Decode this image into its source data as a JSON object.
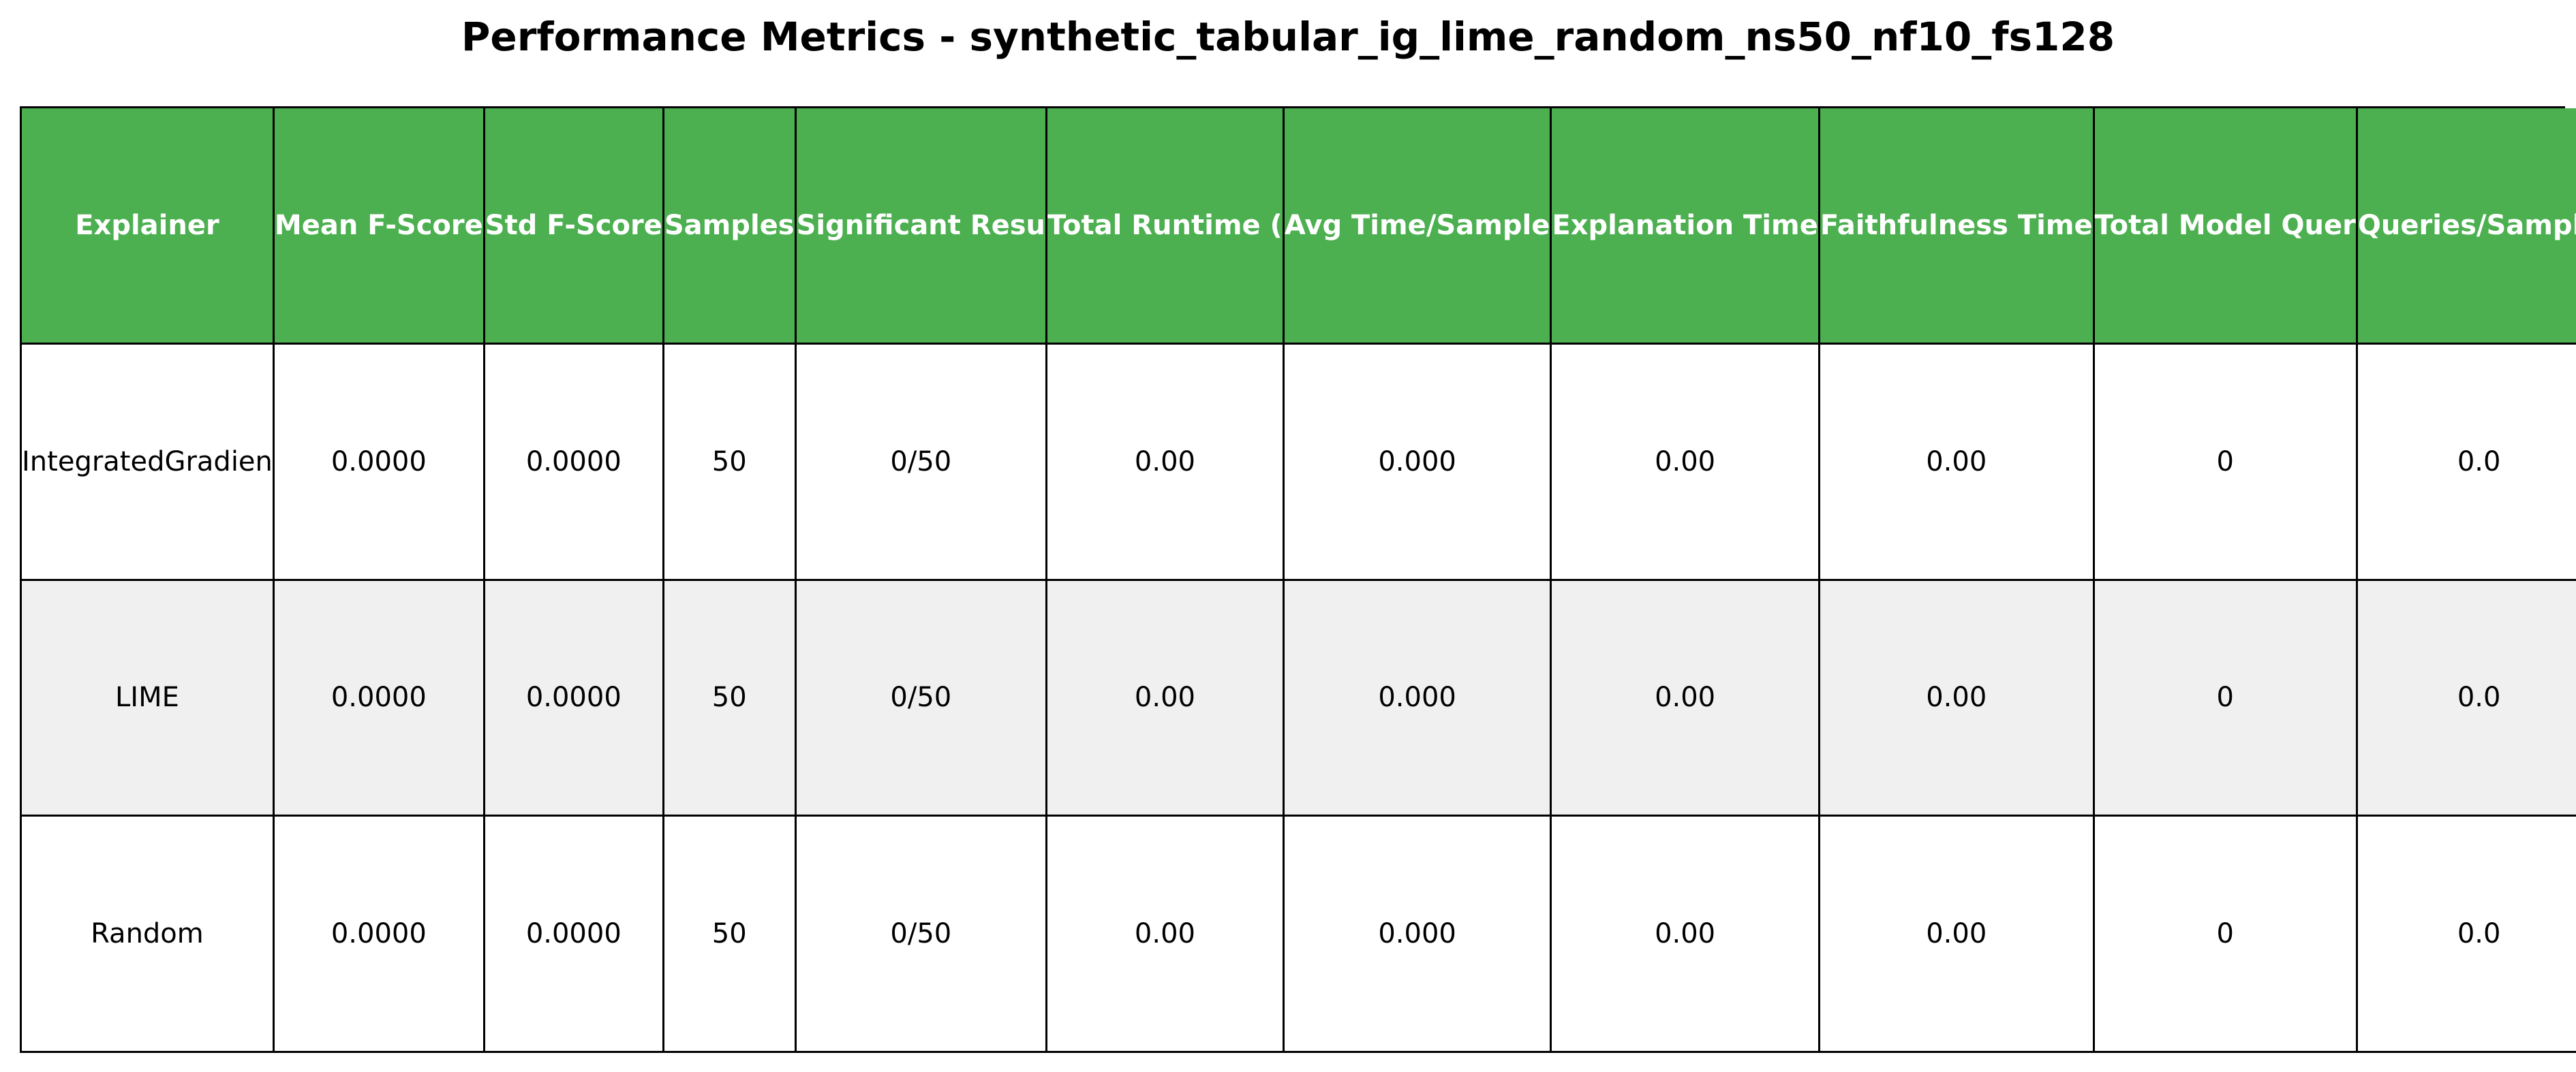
{
  "chart_data": {
    "type": "table",
    "title": "Performance Metrics - synthetic_tabular_ig_lime_random_ns50_nf10_fs128",
    "columns": [
      "Explainer",
      "Mean F-Score",
      "Std F-Score",
      "Samples",
      "Significant Resu",
      "Total Runtime (",
      "Avg Time/Sample",
      "Explanation Time",
      "Faithfulness Time",
      "Total Model Quer",
      "Queries/Sample"
    ],
    "rows": [
      [
        "IntegratedGradien",
        "0.0000",
        "0.0000",
        "50",
        "0/50",
        "0.00",
        "0.000",
        "0.00",
        "0.00",
        "0",
        "0.0"
      ],
      [
        "LIME",
        "0.0000",
        "0.0000",
        "50",
        "0/50",
        "0.00",
        "0.000",
        "0.00",
        "0.00",
        "0",
        "0.0"
      ],
      [
        "Random",
        "0.0000",
        "0.0000",
        "50",
        "0/50",
        "0.00",
        "0.000",
        "0.00",
        "0.00",
        "0",
        "0.0"
      ]
    ],
    "header_color": "#4caf50",
    "header_text_color": "#ffffff",
    "stripe_color": "#f0f0f0"
  }
}
